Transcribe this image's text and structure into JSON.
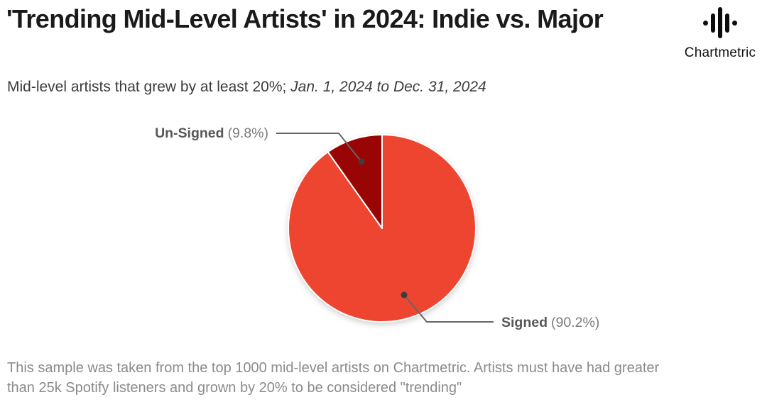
{
  "header": {
    "title": "'Trending Mid-Level Artists' in 2024: Indie vs. Major",
    "subtitle_plain": "Mid-level artists that grew by at least 20%; ",
    "subtitle_italic": "Jan. 1, 2024 to Dec. 31, 2024"
  },
  "logo": {
    "text": "Chartmetric",
    "icon": "waveform-icon"
  },
  "chart_data": {
    "type": "pie",
    "title": "'Trending Mid-Level Artists' in 2024: Indie vs. Major",
    "slices": [
      {
        "label": "Signed",
        "value": 90.2,
        "color": "#ee4531"
      },
      {
        "label": "Un-Signed",
        "value": 9.8,
        "color": "#990404"
      }
    ],
    "start_angle_deg": 0,
    "direction": "clockwise",
    "separator_color": "#ffffff",
    "legend_position": "callout-labels",
    "label_format": "Name (pct%)"
  },
  "labels": {
    "unsigned_name": "Un-Signed",
    "unsigned_pct": "(9.8%)",
    "signed_name": "Signed",
    "signed_pct": "(90.2%)"
  },
  "footer": {
    "lines": [
      "This sample was taken from the top 1000 mid-level artists on Chartmetric. Artists must have had greater",
      "than 25k Spotify listeners and grown by 20% to be considered \"trending\""
    ]
  },
  "colors": {
    "signed": "#ee4531",
    "unsigned": "#990404",
    "leader_line": "#666666",
    "leader_dot": "#3d3d3d",
    "title": "#1a1a1a",
    "footnote": "#8b8b8b"
  }
}
